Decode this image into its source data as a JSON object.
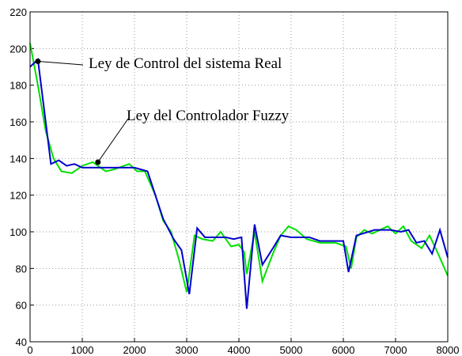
{
  "chart_data": {
    "type": "line",
    "xlim": [
      0,
      8000
    ],
    "xticks": [
      0,
      1000,
      2000,
      3000,
      4000,
      5000,
      6000,
      7000,
      8000
    ],
    "ylim": [
      40,
      220
    ],
    "yticks": [
      40,
      60,
      80,
      100,
      120,
      140,
      160,
      180,
      200,
      220
    ],
    "grid": true,
    "series": [
      {
        "color": "#00e000",
        "x": [
          0,
          150,
          300,
          450,
          600,
          800,
          1000,
          1200,
          1300,
          1450,
          1600,
          1800,
          1900,
          2050,
          2200,
          2400,
          2550,
          2700,
          2850,
          3000,
          3150,
          3300,
          3500,
          3650,
          3850,
          4000,
          4100,
          4150,
          4300,
          4450,
          4650,
          4800,
          4950,
          5100,
          5300,
          5550,
          5850,
          6050,
          6150,
          6250,
          6400,
          6550,
          6700,
          6850,
          7000,
          7150,
          7300,
          7500,
          7650,
          7800,
          8000
        ],
        "values": [
          203,
          180,
          155,
          140,
          133,
          132,
          136,
          138,
          136,
          133,
          134,
          136,
          137,
          133,
          133,
          120,
          106,
          100,
          85,
          67,
          98,
          96,
          95,
          100,
          92,
          93,
          89,
          77,
          100,
          73,
          88,
          98,
          103,
          101,
          96,
          94,
          94,
          92,
          80,
          97,
          101,
          99,
          101,
          103,
          99,
          103,
          95,
          91,
          98,
          89,
          76
        ]
      },
      {
        "color": "#0000cc",
        "x": [
          0,
          150,
          400,
          550,
          700,
          850,
          1000,
          1500,
          2000,
          2250,
          2550,
          2750,
          2900,
          3050,
          3200,
          3350,
          3550,
          3750,
          3900,
          4050,
          4150,
          4300,
          4450,
          4650,
          4800,
          5000,
          5350,
          5550,
          6000,
          6100,
          6250,
          6600,
          6900,
          7100,
          7250,
          7400,
          7550,
          7700,
          7850,
          8000
        ],
        "values": [
          190,
          194,
          137,
          139,
          136,
          137,
          135,
          135,
          135,
          133,
          107,
          96,
          90,
          66,
          102,
          97,
          97,
          97,
          96,
          97,
          58,
          104,
          82,
          91,
          98,
          97,
          97,
          95,
          95,
          78,
          98,
          101,
          101,
          100,
          101,
          94,
          95,
          88,
          101,
          86
        ]
      }
    ],
    "annotations": [
      {
        "text": "Ley de Control del sistema Real",
        "x": 150,
        "y": 193
      },
      {
        "text": "Ley del Controlador Fuzzy",
        "x": 1300,
        "y": 138
      }
    ]
  }
}
